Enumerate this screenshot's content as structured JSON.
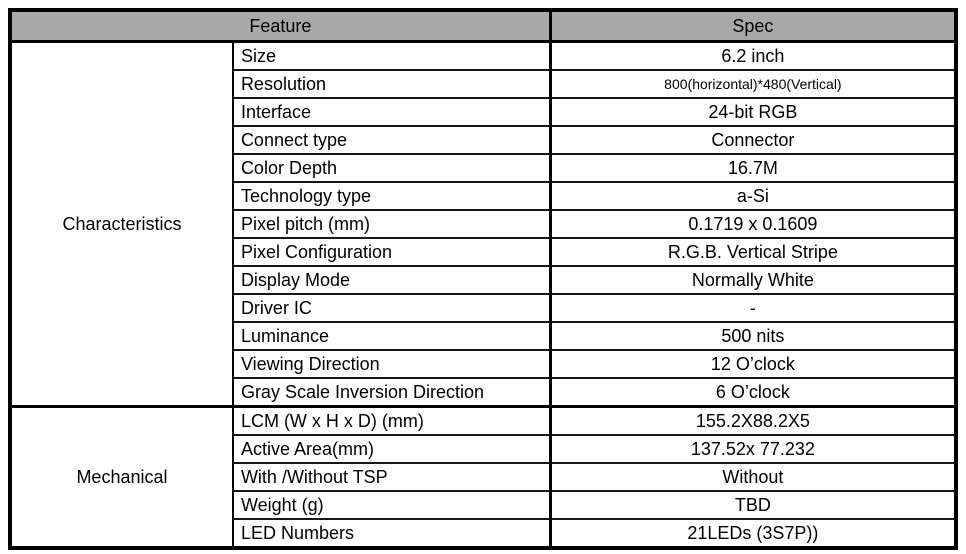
{
  "table": {
    "header": {
      "feature": "Feature",
      "spec": "Spec"
    },
    "sections": [
      {
        "group": "Characteristics",
        "rows": [
          {
            "feature": "Size",
            "spec": "6.2 inch"
          },
          {
            "feature": "Resolution",
            "spec": "800(horizontal)*480(Vertical)"
          },
          {
            "feature": "Interface",
            "spec": "24-bit RGB"
          },
          {
            "feature": "Connect type",
            "spec": "Connector"
          },
          {
            "feature": "Color Depth",
            "spec": "16.7M"
          },
          {
            "feature": "Technology type",
            "spec": "a-Si"
          },
          {
            "feature": "Pixel pitch (mm)",
            "spec": "0.1719 x 0.1609"
          },
          {
            "feature": "Pixel Configuration",
            "spec": "R.G.B. Vertical Stripe"
          },
          {
            "feature": "Display Mode",
            "spec": "Normally White"
          },
          {
            "feature": "Driver IC",
            "spec": "-"
          },
          {
            "feature": "Luminance",
            "spec": "500 nits"
          },
          {
            "feature": "Viewing Direction",
            "spec": "12 O’clock"
          },
          {
            "feature": "Gray Scale Inversion Direction",
            "spec": "6 O’clock"
          }
        ]
      },
      {
        "group": "Mechanical",
        "rows": [
          {
            "feature": "LCM (W x H x D) (mm)",
            "spec": "155.2X88.2X5"
          },
          {
            "feature": "Active Area(mm)",
            "spec": "137.52x 77.232"
          },
          {
            "feature": "With /Without TSP",
            "spec": "Without"
          },
          {
            "feature": "Weight (g)",
            "spec": "TBD"
          },
          {
            "feature": "LED Numbers",
            "spec": "21LEDs (3S7P))"
          }
        ]
      }
    ],
    "colors": {
      "header_bg": "#a9a9a9",
      "border": "#000000",
      "text": "#000000"
    }
  }
}
